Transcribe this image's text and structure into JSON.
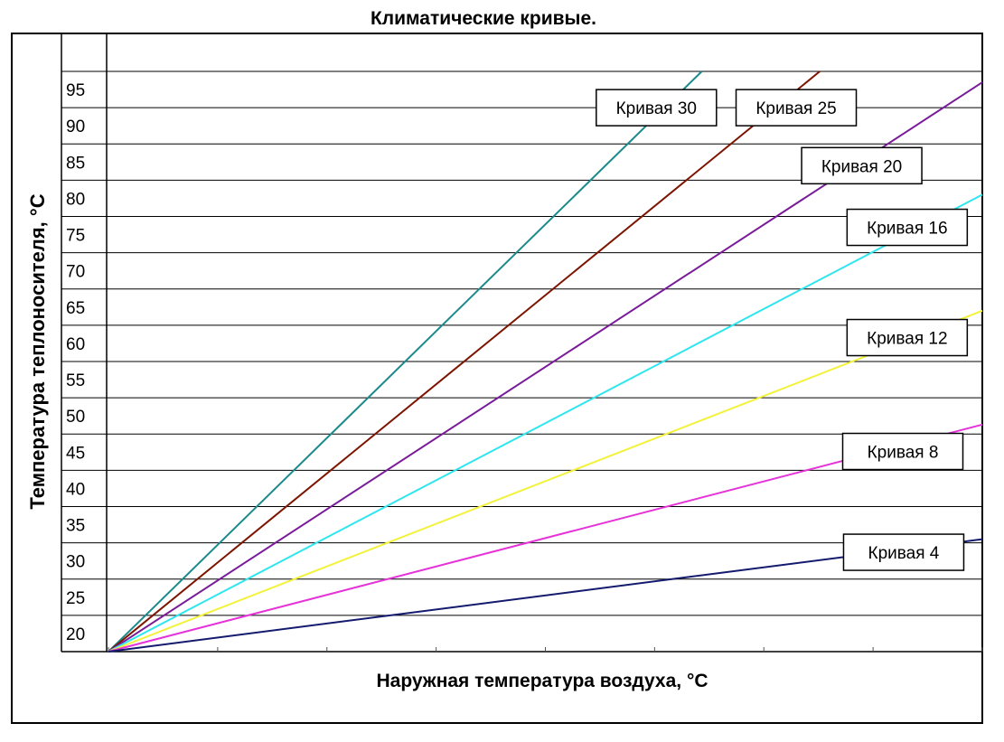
{
  "chart_data": {
    "type": "line",
    "title": "Климатические кривые.",
    "xlabel": "Наружная температура воздуха, °С",
    "ylabel": "Температура теплоносителя, °С",
    "yticks": [
      20,
      25,
      30,
      35,
      40,
      45,
      50,
      55,
      60,
      65,
      70,
      75,
      80,
      85,
      90,
      95
    ],
    "ylim": [
      17.5,
      97.5
    ],
    "xlim": [
      0,
      1
    ],
    "grid": true,
    "series": [
      {
        "name": "Кривая 30",
        "color": "#1c8a8c",
        "x": [
          0,
          0.679
        ],
        "y": [
          17.5,
          97.5
        ],
        "label_pos": [
          0.627,
          92.5
        ]
      },
      {
        "name": "Кривая 25",
        "color": "#7d1500",
        "x": [
          0,
          0.814
        ],
        "y": [
          17.5,
          97.5
        ],
        "label_pos": [
          0.787,
          92.5
        ]
      },
      {
        "name": "Кривая 20",
        "color": "#7a1c9a",
        "x": [
          0,
          1.0
        ],
        "y": [
          17.5,
          96.0
        ],
        "label_pos": [
          0.862,
          84.5
        ]
      },
      {
        "name": "Кривая 16",
        "color": "#2fe6ee",
        "x": [
          0,
          1.0
        ],
        "y": [
          17.5,
          80.5
        ],
        "label_pos": [
          0.914,
          76.0
        ]
      },
      {
        "name": "Кривая 12",
        "color": "#f2f23a",
        "x": [
          0,
          1.0
        ],
        "y": [
          17.5,
          64.5
        ],
        "label_pos": [
          0.914,
          60.8
        ]
      },
      {
        "name": "Кривая 8",
        "color": "#e633d9",
        "x": [
          0,
          1.0
        ],
        "y": [
          17.5,
          48.8
        ],
        "label_pos": [
          0.909,
          45.1
        ]
      },
      {
        "name": "Кривая 4",
        "color": "#141a6e",
        "x": [
          0,
          1.0
        ],
        "y": [
          17.5,
          33.0
        ],
        "label_pos": [
          0.91,
          31.2
        ]
      }
    ]
  }
}
